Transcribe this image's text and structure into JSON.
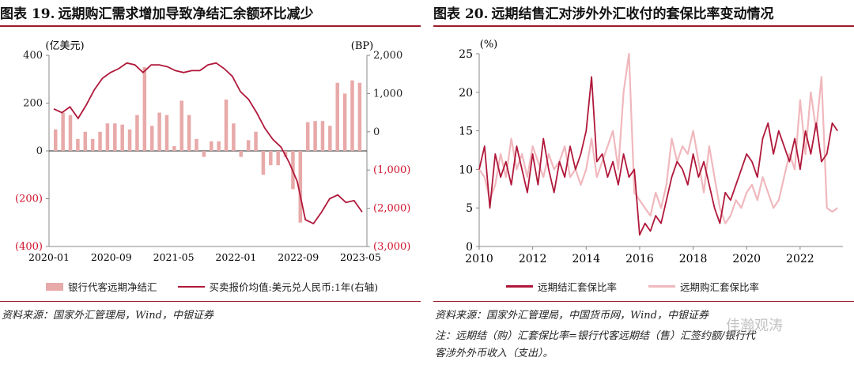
{
  "left": {
    "fig_label": "图表 19.",
    "title": "远期购汇需求增加导致净结汇余额环比减少",
    "left_unit": "(亿美元)",
    "right_unit": "(BP)",
    "legend_bar": "银行代客远期净结汇",
    "legend_line": "买卖报价均值:美元兑人民币:1年(右轴)",
    "source": "资料来源：国家外汇管理局，Wind，中银证券"
  },
  "right": {
    "fig_label": "图表 20.",
    "title": "远期结售汇对涉外外汇收付的套保比率变动情况",
    "y_unit": "(%)",
    "legend_dark": "远期结汇套保比率",
    "legend_light": "远期购汇套保比率",
    "source": "资料来源：国家外汇管理局，中国货币网，Wind，中银证券",
    "note_line1": "注：远期结（购）汇套保比率=银行代客远期结（售）汇签约额/银行代",
    "note_line2": "客涉外外币收入（支出）。"
  },
  "watermark": "佳瀚观涛",
  "colors": {
    "accent": "#9a1b2a",
    "bar": "#e8a9a9",
    "line_dark": "#b0183a",
    "line_light": "#f0b8bd",
    "neg_tick": "#d0112b"
  },
  "chart_data": [
    {
      "type": "bar+line",
      "title": "远期购汇需求增加导致净结汇余额环比减少",
      "x_tick_labels": [
        "2020-01",
        "2020-09",
        "2021-05",
        "2022-01",
        "2022-09",
        "2023-05"
      ],
      "left_axis": {
        "unit": "亿美元",
        "ylim": [
          -400,
          400
        ],
        "ticks": [
          400,
          200,
          0,
          -200,
          -400
        ],
        "tick_labels": [
          "400",
          "200",
          "0",
          "(200)",
          "(400)"
        ]
      },
      "right_axis": {
        "unit": "BP",
        "ylim": [
          -3000,
          2000
        ],
        "ticks": [
          2000,
          1000,
          0,
          -1000,
          -2000,
          -3000
        ],
        "tick_labels": [
          "2,000",
          "1,000",
          "0",
          "(1,000)",
          "(2,000)",
          "(3,000)"
        ]
      },
      "series": [
        {
          "name": "银行代客远期净结汇",
          "kind": "bar",
          "axis": "left",
          "values": [
            90,
            160,
            150,
            50,
            80,
            50,
            80,
            115,
            115,
            110,
            90,
            150,
            350,
            105,
            160,
            150,
            20,
            210,
            150,
            50,
            -25,
            40,
            40,
            215,
            115,
            -25,
            45,
            80,
            -100,
            -60,
            -60,
            -25,
            -160,
            -300,
            120,
            125,
            125,
            105,
            285,
            240,
            295,
            285
          ]
        },
        {
          "name": "买卖报价均值:美元兑人民币:1年(右轴)",
          "kind": "line",
          "axis": "right",
          "values": [
            600,
            500,
            650,
            350,
            700,
            1100,
            1400,
            1550,
            1650,
            1800,
            1750,
            1550,
            1750,
            1750,
            1700,
            1600,
            1550,
            1600,
            1600,
            1750,
            1800,
            1650,
            1450,
            1050,
            850,
            500,
            100,
            -200,
            -400,
            -800,
            -1300,
            -2300,
            -2400,
            -2100,
            -1750,
            -1650,
            -1850,
            -1800,
            -2100
          ]
        }
      ]
    },
    {
      "type": "line",
      "title": "远期结售汇对涉外外汇收付的套保比率变动情况",
      "y_unit": "%",
      "ylim": [
        0,
        25
      ],
      "y_ticks": [
        0,
        5,
        10,
        15,
        20,
        25
      ],
      "x_ticks": [
        2010,
        2012,
        2014,
        2016,
        2018,
        2020,
        2022
      ],
      "xlim": [
        2010,
        2023.6
      ],
      "series": [
        {
          "name": "远期结汇套保比率",
          "x": [
            2010.0,
            2010.2,
            2010.4,
            2010.6,
            2010.8,
            2011.0,
            2011.2,
            2011.4,
            2011.6,
            2011.8,
            2012.0,
            2012.2,
            2012.4,
            2012.6,
            2012.8,
            2013.0,
            2013.2,
            2013.4,
            2013.6,
            2013.8,
            2014.0,
            2014.2,
            2014.4,
            2014.6,
            2014.8,
            2015.0,
            2015.2,
            2015.4,
            2015.6,
            2015.8,
            2016.0,
            2016.2,
            2016.4,
            2016.6,
            2016.8,
            2017.0,
            2017.2,
            2017.4,
            2017.6,
            2017.8,
            2018.0,
            2018.2,
            2018.4,
            2018.6,
            2018.8,
            2019.0,
            2019.2,
            2019.4,
            2019.6,
            2019.8,
            2020.0,
            2020.2,
            2020.4,
            2020.6,
            2020.8,
            2021.0,
            2021.2,
            2021.4,
            2021.6,
            2021.8,
            2022.0,
            2022.2,
            2022.4,
            2022.6,
            2022.8,
            2023.0,
            2023.2,
            2023.4
          ],
          "values": [
            10,
            13,
            5,
            12,
            9,
            11,
            8,
            13,
            10,
            7,
            12,
            8,
            14,
            10,
            7,
            11,
            9,
            13,
            10,
            12,
            15,
            22,
            11,
            12,
            9,
            11,
            8,
            12,
            9,
            10,
            1.5,
            3,
            2,
            4,
            3,
            6,
            9,
            11,
            10,
            8,
            12,
            9,
            11,
            8,
            5,
            3,
            7,
            6,
            8,
            10,
            12,
            11,
            9,
            14,
            16,
            12,
            15,
            13,
            11,
            14,
            10,
            15,
            12,
            16,
            11,
            12,
            16,
            15
          ]
        },
        {
          "name": "远期购汇套保比率",
          "x": [
            2010.0,
            2010.2,
            2010.4,
            2010.6,
            2010.8,
            2011.0,
            2011.2,
            2011.4,
            2011.6,
            2011.8,
            2012.0,
            2012.2,
            2012.4,
            2012.6,
            2012.8,
            2013.0,
            2013.2,
            2013.4,
            2013.6,
            2013.8,
            2014.0,
            2014.2,
            2014.4,
            2014.6,
            2014.8,
            2015.0,
            2015.2,
            2015.4,
            2015.6,
            2015.8,
            2016.0,
            2016.2,
            2016.4,
            2016.6,
            2016.8,
            2017.0,
            2017.2,
            2017.4,
            2017.6,
            2017.8,
            2018.0,
            2018.2,
            2018.4,
            2018.6,
            2018.8,
            2019.0,
            2019.2,
            2019.4,
            2019.6,
            2019.8,
            2020.0,
            2020.2,
            2020.4,
            2020.6,
            2020.8,
            2021.0,
            2021.2,
            2021.4,
            2021.6,
            2021.8,
            2022.0,
            2022.2,
            2022.4,
            2022.6,
            2022.8,
            2023.0,
            2023.2,
            2023.4
          ],
          "values": [
            10,
            9,
            6,
            8,
            12,
            9,
            14,
            10,
            12,
            9,
            13,
            11,
            9,
            12,
            10,
            11,
            13,
            9,
            10,
            8,
            10,
            14,
            9,
            11,
            13,
            15,
            10,
            20,
            25,
            7,
            6,
            5,
            4,
            7,
            5,
            8,
            14,
            11,
            13,
            12,
            15,
            11,
            7,
            13,
            9,
            5,
            3,
            4,
            6,
            5,
            7,
            8,
            6,
            9,
            7,
            5,
            6,
            9,
            12,
            10,
            19,
            12,
            20,
            15,
            22,
            5,
            4.5,
            5
          ]
        }
      ]
    }
  ]
}
